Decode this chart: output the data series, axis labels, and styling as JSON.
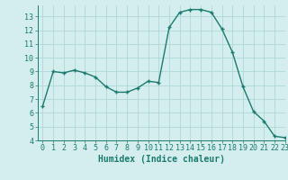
{
  "x": [
    0,
    1,
    2,
    3,
    4,
    5,
    6,
    7,
    8,
    9,
    10,
    11,
    12,
    13,
    14,
    15,
    16,
    17,
    18,
    19,
    20,
    21,
    22,
    23
  ],
  "y": [
    6.5,
    9.0,
    8.9,
    9.1,
    8.9,
    8.6,
    7.9,
    7.5,
    7.5,
    7.8,
    8.3,
    8.2,
    12.2,
    13.3,
    13.5,
    13.5,
    13.3,
    12.1,
    10.4,
    7.9,
    6.1,
    5.4,
    4.3,
    4.2
  ],
  "xlabel": "Humidex (Indice chaleur)",
  "ylim": [
    4,
    13.8
  ],
  "xlim": [
    -0.5,
    23
  ],
  "yticks": [
    4,
    5,
    6,
    7,
    8,
    9,
    10,
    11,
    12,
    13
  ],
  "xticks": [
    0,
    1,
    2,
    3,
    4,
    5,
    6,
    7,
    8,
    9,
    10,
    11,
    12,
    13,
    14,
    15,
    16,
    17,
    18,
    19,
    20,
    21,
    22,
    23
  ],
  "line_color": "#1a7a6e",
  "marker_color": "#1a7a6e",
  "bg_color": "#d4eeee",
  "grid_color": "#b0d8d4",
  "tick_color": "#1a7a6e",
  "label_color": "#1a7a6e",
  "label_fontsize": 7,
  "tick_fontsize": 6
}
